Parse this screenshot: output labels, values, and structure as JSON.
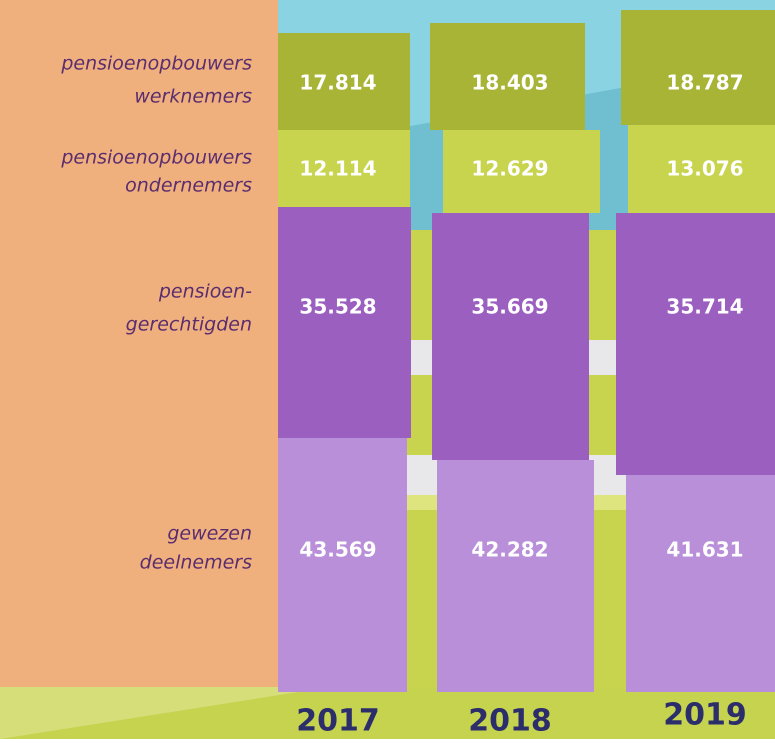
{
  "rows": [
    {
      "label": [
        "pensioenopbouwers",
        "werknemers"
      ],
      "values": [
        "17.814",
        "18.403",
        "18.787"
      ]
    },
    {
      "label": [
        "pensioenopbouwers",
        "ondernemers"
      ],
      "values": [
        "12.114",
        "12.629",
        "13.076"
      ]
    },
    {
      "label": [
        "pensioen-",
        "gerechtigden"
      ],
      "values": [
        "35.528",
        "35.669",
        "35.714"
      ]
    },
    {
      "label": [
        "gewezen",
        "deelnemers"
      ],
      "values": [
        "43.569",
        "42.282",
        "41.631"
      ]
    }
  ],
  "years": [
    "2017",
    "2018",
    "2019"
  ]
}
